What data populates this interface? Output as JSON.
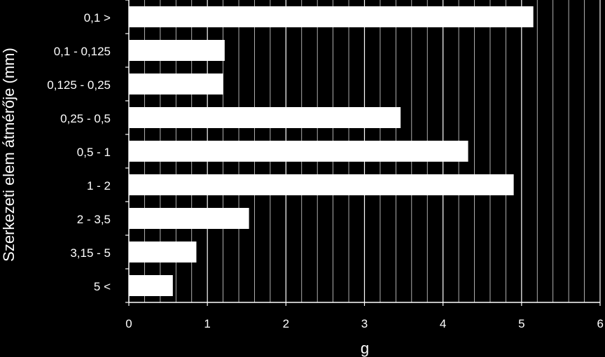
{
  "chart_data": {
    "type": "bar",
    "orientation": "horizontal",
    "categories": [
      "0,1 >",
      "0,1 - 0,125",
      "0,125 - 0,25",
      "0,25 - 0,5",
      "0,5 - 1",
      "1 - 2",
      "2 - 3,5",
      "3,15 - 5",
      "5 <"
    ],
    "values": [
      5.15,
      1.22,
      1.2,
      3.46,
      4.32,
      4.9,
      1.53,
      0.86,
      0.56
    ],
    "title": "",
    "xlabel": "g",
    "ylabel": "Szerkezeti elem átmérője (mm)",
    "xlim": [
      0,
      6
    ],
    "x_ticks": [
      "0",
      "1",
      "2",
      "3",
      "4",
      "5",
      "6"
    ],
    "x_minor_step": 0.2,
    "grid": true,
    "legend": "none",
    "colors": {
      "background": "#000000",
      "bar": "#ffffff",
      "grid": "#ffffff",
      "text": "#ffffff"
    }
  }
}
